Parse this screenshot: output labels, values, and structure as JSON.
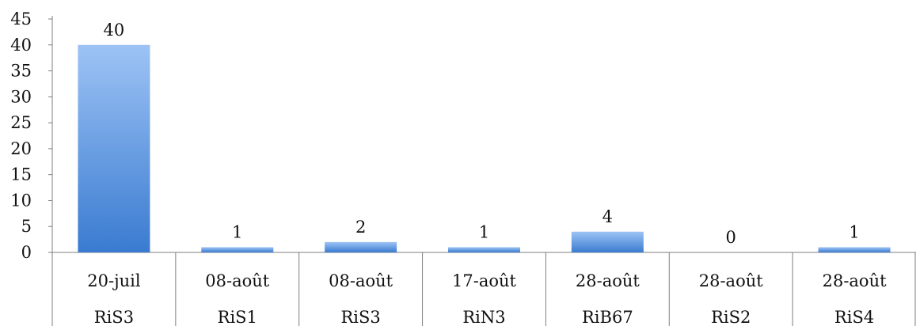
{
  "chart_data": {
    "type": "bar",
    "categories": [
      [
        "20-juil",
        "RiS3"
      ],
      [
        "08-août",
        "RiS1"
      ],
      [
        "08-août",
        "RiS3"
      ],
      [
        "17-août",
        "RiN3"
      ],
      [
        "28-août",
        "RiB67"
      ],
      [
        "28-août",
        "RiS2"
      ],
      [
        "28-août",
        "RiS4"
      ]
    ],
    "values": [
      40,
      1,
      2,
      1,
      4,
      0,
      1
    ],
    "ylim": [
      0,
      45
    ],
    "yticks": [
      0,
      5,
      10,
      15,
      20,
      25,
      30,
      35,
      40,
      45
    ],
    "data_labels": [
      "40",
      "1",
      "2",
      "1",
      "4",
      "0",
      "1"
    ],
    "grid": false,
    "legend": "none",
    "colors": {
      "bar_top": "#9dc3f5",
      "bar_bottom": "#3a7bd0",
      "axis": "#7f7f7f"
    }
  }
}
